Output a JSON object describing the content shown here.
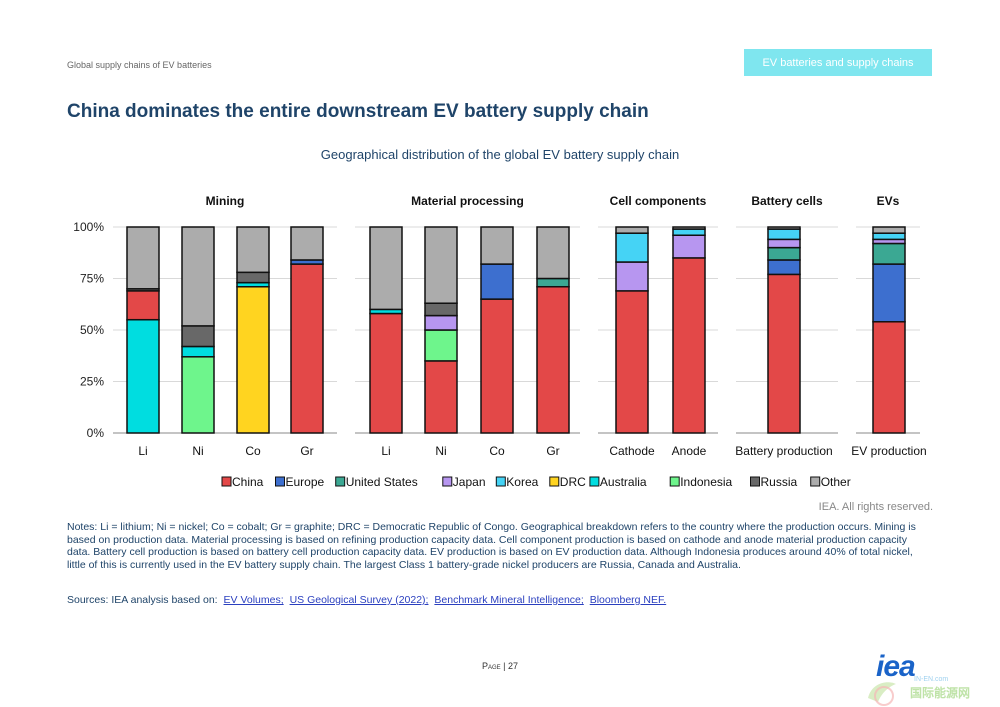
{
  "header": {
    "section": "Global supply chains of EV batteries",
    "badge": "EV batteries and supply chains"
  },
  "page_title": "China dominates the entire downstream EV battery supply chain",
  "chart_data": {
    "type": "bar",
    "stacked": true,
    "title": "Geographical distribution of the global EV battery supply chain",
    "yticks": [
      "100%",
      "75%",
      "50%",
      "25%",
      "0%"
    ],
    "ylim": [
      0,
      100
    ],
    "grid": true,
    "legend_position": "bottom",
    "series_names": [
      "China",
      "Europe",
      "United States",
      "Japan",
      "Korea",
      "DRC",
      "Australia",
      "Indonesia",
      "Russia",
      "Other"
    ],
    "series_colors": [
      "#e34848",
      "#3d6fcf",
      "#3ba893",
      "#b796f0",
      "#45d3f5",
      "#ffd420",
      "#00dde0",
      "#6ef58c",
      "#686868",
      "#acacac"
    ],
    "groups": [
      {
        "title": "Mining",
        "bars": [
          {
            "label": "Li",
            "values": [
              0,
              0,
              0,
              0,
              0,
              0,
              55,
              0,
              0,
              0
            ],
            "china": 14,
            "other": 30
          },
          {
            "label": "Ni",
            "values": [
              0,
              0,
              0,
              0,
              0,
              0,
              5,
              37,
              10,
              0
            ]
          },
          {
            "label": "Co",
            "values": [
              0,
              0,
              0,
              0,
              0,
              71,
              2,
              0,
              5,
              0
            ]
          },
          {
            "label": "Gr",
            "values": [
              82,
              2,
              0,
              0,
              0,
              0,
              0,
              0,
              0,
              0
            ]
          }
        ]
      },
      {
        "title": "Material processing",
        "bars": [
          {
            "label": "Li",
            "values": [
              58,
              0,
              0,
              0,
              0,
              0,
              2,
              0,
              0,
              0
            ]
          },
          {
            "label": "Ni",
            "values": [
              35,
              0,
              0,
              7,
              0,
              0,
              0,
              15,
              6,
              0
            ]
          },
          {
            "label": "Co",
            "values": [
              65,
              17,
              0,
              0,
              0,
              0,
              0,
              0,
              0,
              0
            ]
          },
          {
            "label": "Gr",
            "values": [
              71,
              0,
              4,
              0,
              0,
              0,
              0,
              0,
              0,
              0
            ]
          }
        ]
      },
      {
        "title": "Cell components",
        "bars": [
          {
            "label": "Cathode",
            "values": [
              69,
              0,
              0,
              14,
              14,
              0,
              0,
              0,
              0,
              0
            ]
          },
          {
            "label": "Anode",
            "values": [
              85,
              0,
              0,
              11,
              3,
              0,
              0,
              0,
              0,
              0
            ]
          }
        ]
      },
      {
        "title": "Battery cells",
        "bars": [
          {
            "label": "Battery production",
            "values": [
              77,
              7,
              6,
              4,
              5,
              0,
              0,
              0,
              0,
              0
            ]
          }
        ]
      },
      {
        "title": "EVs",
        "bars": [
          {
            "label": "EV production",
            "values": [
              54,
              28,
              10,
              2,
              3,
              0,
              0,
              0,
              0,
              0
            ]
          }
        ]
      }
    ]
  },
  "rights": "IEA. All rights reserved.",
  "notes": "Notes: Li = lithium; Ni = nickel; Co = cobalt; Gr = graphite; DRC = Democratic Republic of Congo. Geographical breakdown refers to the country where the production occurs. Mining is based on production data. Material processing is based on refining production capacity data. Cell component production is based on cathode and anode material production capacity data. Battery cell production is based on battery cell production capacity data. EV production is based on EV production data. Although Indonesia produces around 40% of total nickel, little of this is currently used in the EV battery supply chain. The largest Class 1 battery-grade nickel producers are Russia, Canada and Australia.",
  "sources": {
    "prefix": "Sources: IEA analysis based on:",
    "links": [
      "EV Volumes;",
      "US Geological Survey (2022);",
      "Benchmark Mineral Intelligence;",
      "Bloomberg NEF."
    ]
  },
  "page": {
    "label": "Page",
    "number": "| 27"
  },
  "logo": "iea",
  "watermark": {
    "text": "国际能源网",
    "domain": "IN-EN.com"
  }
}
